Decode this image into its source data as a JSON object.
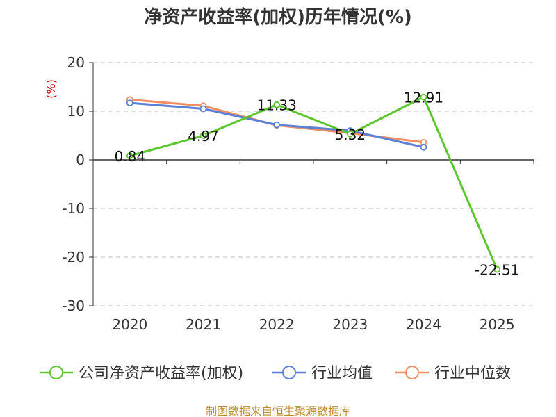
{
  "chart_data": {
    "type": "line",
    "title": "净资产收益率(加权)历年情况(%)",
    "ylabel": "(%)",
    "xlabel": "",
    "categories": [
      "2020",
      "2021",
      "2022",
      "2023",
      "2024",
      "2025"
    ],
    "yticks": [
      20,
      10,
      0,
      -10,
      -20,
      -30
    ],
    "ylim": [
      -30,
      20
    ],
    "grid": true,
    "legend_position": "bottom",
    "series": [
      {
        "name": "公司净资产收益率(加权)",
        "values": [
          0.84,
          4.97,
          11.33,
          5.32,
          12.91,
          -22.51
        ],
        "labels": [
          "0.84",
          "4.97",
          "11.33",
          "5.32",
          "12.91",
          "-22.51"
        ],
        "color": "#5bc72c"
      },
      {
        "name": "行业均值",
        "values": [
          11.7,
          10.5,
          7.2,
          6.0,
          2.6,
          null
        ],
        "color": "#5b80d8"
      },
      {
        "name": "行业中位数",
        "values": [
          12.4,
          11.1,
          7.1,
          5.5,
          3.6,
          null
        ],
        "color": "#f28f62"
      }
    ]
  },
  "source_text": "制图数据来自恒生聚源数据库",
  "colors": {
    "unit_label": "#cc0000",
    "source_text": "#c08a2c",
    "grid": "#cccccc",
    "axis": "#333333"
  }
}
